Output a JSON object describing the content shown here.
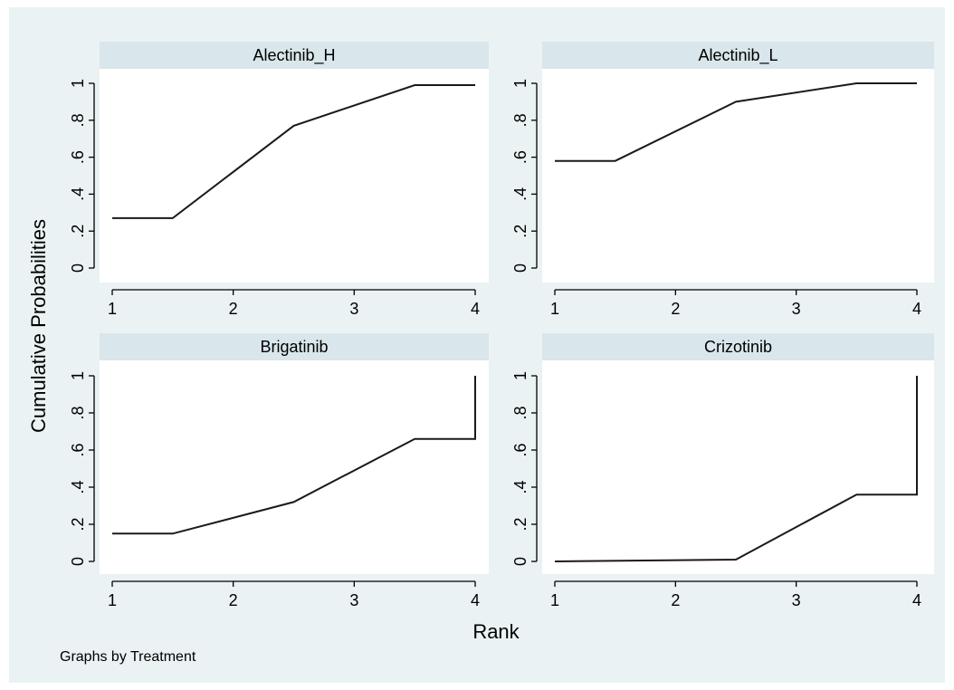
{
  "colors": {
    "page_background": "#ffffff",
    "figure_background": "#eaf2f3",
    "plot_background": "#ffffff",
    "strip_background": "#d9e6eb",
    "line": "#1a1a1a",
    "axis": "#000000"
  },
  "figure": {
    "ylabel": "Cumulative Probabilities",
    "xlabel": "Rank",
    "note": "Graphs by Treatment"
  },
  "chart_data": [
    {
      "type": "line",
      "title": "Alectinib_H",
      "xlim": [
        1,
        4
      ],
      "ylim": [
        0,
        1
      ],
      "xticks": [
        "1",
        "2",
        "3",
        "4"
      ],
      "yticks": [
        "0",
        ".2",
        ".4",
        ".6",
        ".8",
        "1"
      ],
      "grid": false,
      "x": [
        1,
        1.5,
        2.5,
        3.5,
        4
      ],
      "y": [
        0.27,
        0.27,
        0.77,
        0.99,
        0.99
      ]
    },
    {
      "type": "line",
      "title": "Alectinib_L",
      "xlim": [
        1,
        4
      ],
      "ylim": [
        0,
        1
      ],
      "xticks": [
        "1",
        "2",
        "3",
        "4"
      ],
      "yticks": [
        "0",
        ".2",
        ".4",
        ".6",
        ".8",
        "1"
      ],
      "grid": false,
      "x": [
        1,
        1.5,
        2.5,
        3.5,
        4
      ],
      "y": [
        0.58,
        0.58,
        0.9,
        1.0,
        1.0
      ]
    },
    {
      "type": "line",
      "title": "Brigatinib",
      "xlim": [
        1,
        4
      ],
      "ylim": [
        0,
        1
      ],
      "xticks": [
        "1",
        "2",
        "3",
        "4"
      ],
      "yticks": [
        "0",
        ".2",
        ".4",
        ".6",
        ".8",
        "1"
      ],
      "grid": false,
      "x": [
        1,
        1.5,
        2.5,
        3.5,
        4,
        4
      ],
      "y": [
        0.15,
        0.15,
        0.32,
        0.66,
        0.66,
        1.0
      ]
    },
    {
      "type": "line",
      "title": "Crizotinib",
      "xlim": [
        1,
        4
      ],
      "ylim": [
        0,
        1
      ],
      "xticks": [
        "1",
        "2",
        "3",
        "4"
      ],
      "yticks": [
        "0",
        ".2",
        ".4",
        ".6",
        ".8",
        "1"
      ],
      "grid": false,
      "x": [
        1,
        2.5,
        3.5,
        4,
        4
      ],
      "y": [
        0.0,
        0.01,
        0.36,
        0.36,
        1.0
      ]
    }
  ]
}
